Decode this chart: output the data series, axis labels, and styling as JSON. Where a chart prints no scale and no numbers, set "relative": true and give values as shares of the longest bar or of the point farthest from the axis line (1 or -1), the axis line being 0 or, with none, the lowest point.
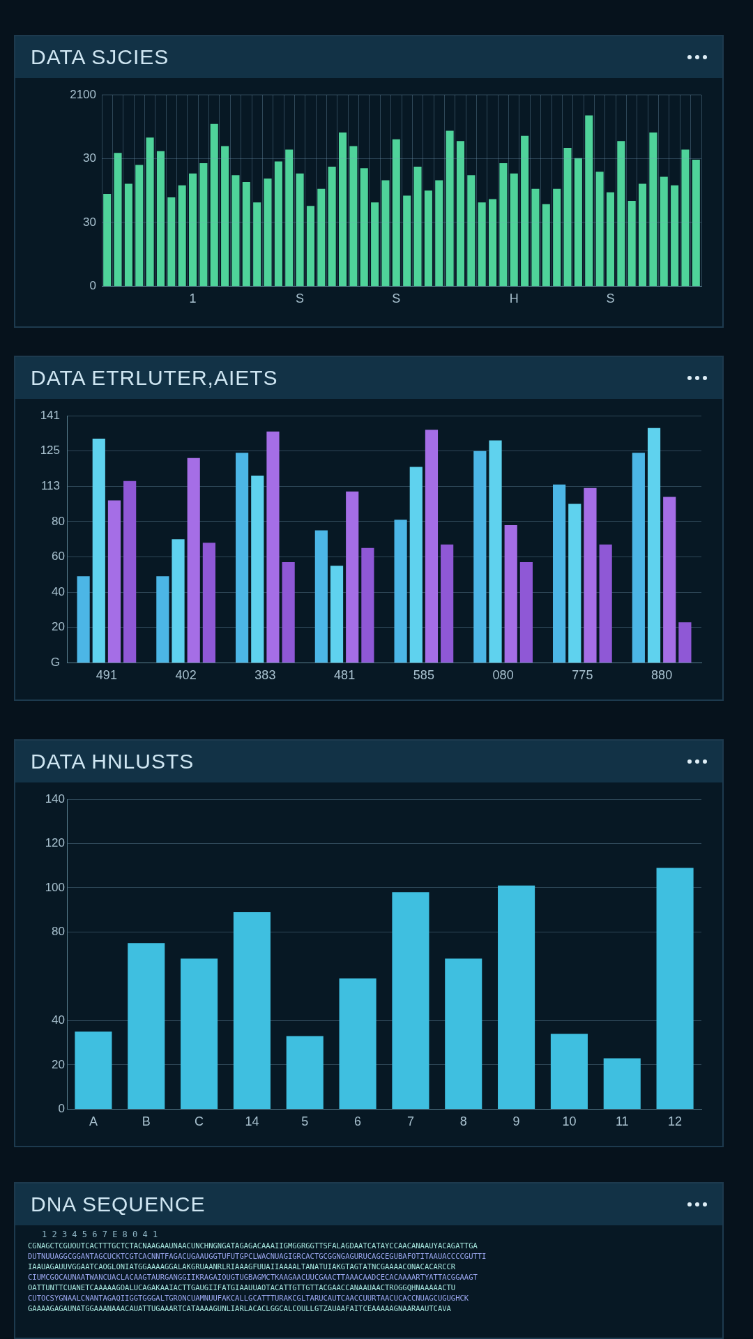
{
  "chart_data": [
    {
      "type": "bar",
      "title": "DATA SJCIES",
      "relative": true,
      "categories": [
        null,
        null,
        null,
        null,
        null,
        null,
        null,
        null,
        "1",
        null,
        null,
        null,
        null,
        null,
        null,
        null,
        null,
        null,
        "S",
        null,
        null,
        null,
        null,
        null,
        null,
        null,
        null,
        "S",
        null,
        null,
        null,
        null,
        null,
        null,
        null,
        null,
        null,
        null,
        "H",
        null,
        null,
        null,
        null,
        null,
        null,
        null,
        null,
        "S",
        null,
        null,
        null,
        null,
        null,
        null,
        null,
        null
      ],
      "values": [
        0.54,
        0.78,
        0.6,
        0.71,
        0.87,
        0.79,
        0.52,
        0.59,
        0.66,
        0.72,
        0.95,
        0.82,
        0.65,
        0.61,
        0.49,
        0.63,
        0.73,
        0.8,
        0.66,
        0.47,
        0.57,
        0.7,
        0.9,
        0.82,
        0.69,
        0.49,
        0.62,
        0.86,
        0.53,
        0.7,
        0.56,
        0.62,
        0.91,
        0.85,
        0.65,
        0.49,
        0.51,
        0.72,
        0.66,
        0.88,
        0.57,
        0.48,
        0.57,
        0.81,
        0.75,
        1,
        0.67,
        0.55,
        0.85,
        0.5,
        0.6,
        0.9,
        0.64,
        0.59,
        0.8,
        0.74
      ],
      "color": "#4fd39a",
      "grid": true,
      "annotations": [
        "2100",
        "30",
        "30",
        "0"
      ]
    },
    {
      "type": "bar",
      "title": "DATA ETRLUTER,AIETS",
      "categories": [
        "491",
        "402",
        "383",
        "481",
        "585",
        "080",
        "775",
        "880"
      ],
      "series": [
        {
          "color": "#4cb6e6",
          "values": [
            49,
            49,
            119,
            75,
            81,
            120,
            101,
            119
          ]
        },
        {
          "color": "#5fd2ee",
          "values": [
            127,
            70,
            106,
            55,
            111,
            126,
            90,
            133
          ]
        },
        {
          "color": "#a56ee6",
          "values": [
            92,
            116,
            131,
            97,
            132,
            78,
            99,
            94
          ]
        },
        {
          "color": "#8f58d6",
          "values": [
            103,
            68,
            57,
            65,
            67,
            57,
            67,
            23
          ]
        }
      ],
      "ylim": [
        0,
        140
      ],
      "yticks": [
        {
          "value": 0,
          "label": null
        },
        20,
        40,
        60,
        80,
        {
          "value": 100,
          "label": null
        },
        {
          "value": 120,
          "label": null
        },
        {
          "value": 140,
          "label": null
        }
      ],
      "grid": "y",
      "annotations": [
        "G",
        "113",
        "125",
        "141"
      ]
    },
    {
      "type": "bar",
      "title": "DATA HNLUSTS",
      "categories": [
        "A",
        "B",
        "C",
        "14",
        "5",
        "6",
        "7",
        "8",
        "9",
        "10",
        "11",
        "12"
      ],
      "values": [
        35,
        75,
        68,
        89,
        33,
        59,
        98,
        68,
        101,
        34,
        23,
        109
      ],
      "color": "#3fbfe0",
      "ylim": [
        0,
        140
      ],
      "yticks": [
        0,
        20,
        40,
        80,
        100,
        120,
        140
      ],
      "grid": "y"
    },
    {
      "type": "other",
      "title": "DNA SEQUENCE",
      "annotations": [
        "1 2 3 4 5 6 7 E 8 0 4 1",
        "CGNAGCTCGUOUTCACTTTGCTCTACNAAGAAUNAACUNCHNGNGATAGAGACAAAIIGMGGRGGTTSFALAGDAATCATAYCCAACANAAUYACAGATTGA",
        "DUTNUUAGGCGGANTAGCUCKTCGTCACNNTFAGACUGAAUGGTUFUTGPCLWACNUAGIGRCACTGCGGNGAGURUCAGCEGUBAFOTITAAUACCCCGUTTI",
        "IAAUAGAUUVGGAATCAOGLONIATGGAAAAGGALAKGRUAANRLRIAAAGFUUAIIAAAALTANATUIAKGTAGTATNCGAAAACONACACARCCR",
        "CIUMCGOCAUNAATWANCUACLACAAGTAURGANGGIIKRAGAIOUGTUGBAGMCTKAAGAACUUCGAACTTAAACAADCECACAAAARTYATTACGGAAGT",
        "OATTUNTTCUANETCAAAAAGOALUCAGAKAAIACTTGAUGIIFATGIAAUUAOTACATTGTTGTTACGAACCANAAUAACTROGGQHNAAAAACTU",
        "CUTOCSYGNAALCNANTAGAQIIGGTGGGALTGRONCUAMNUUFAKCALLGCATTTURAKCGLTARUCAUTCAACCUURTAACUCACCNUAGCUGUGHCK",
        "GAAAAGAGAUNATGGAAANAAACAUATTUGAAARTCATAAAAGUNLIARLACACLGGCALCOULLGTZAUAAFAITCEAAAAAGNAARAAUTCAVA"
      ]
    }
  ]
}
